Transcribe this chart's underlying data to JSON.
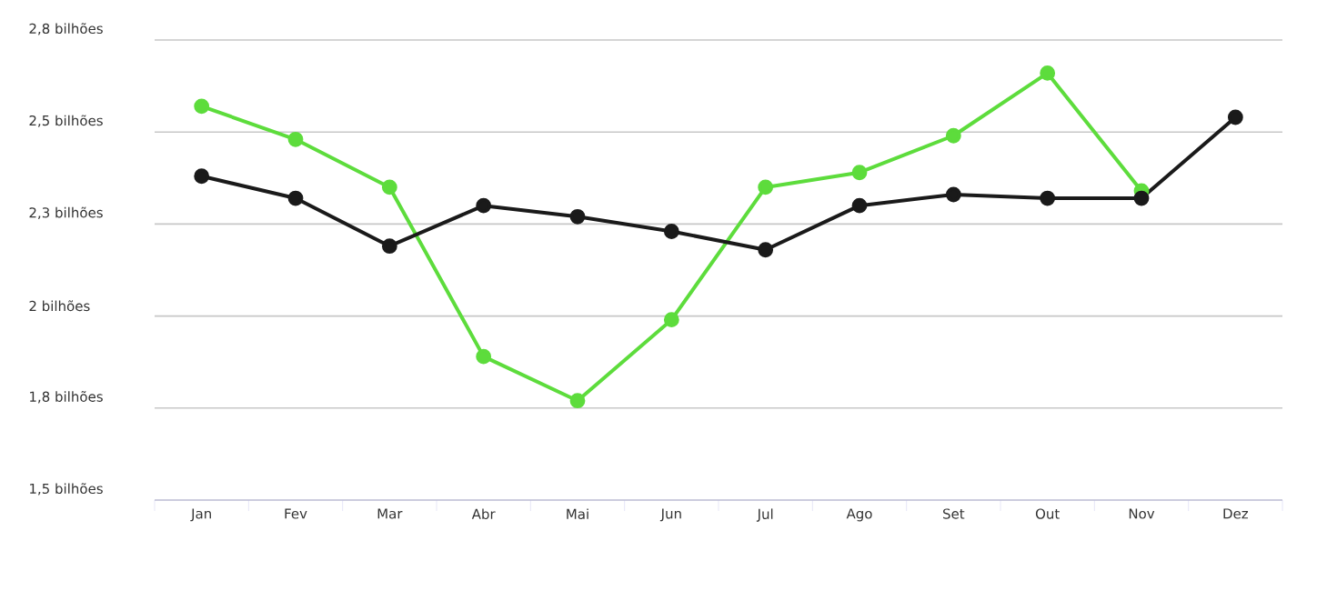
{
  "chart_data": {
    "type": "line",
    "categories": [
      "Jan",
      "Fev",
      "Mar",
      "Abr",
      "Mai",
      "Jun",
      "Jul",
      "Ago",
      "Set",
      "Out",
      "Nov",
      "Dez"
    ],
    "series": [
      {
        "color": "#5ddc3c",
        "values": [
          2.57,
          2.48,
          2.35,
          1.89,
          1.77,
          1.99,
          2.35,
          2.39,
          2.49,
          2.66,
          2.34,
          null
        ]
      },
      {
        "color": "#1a1a1a",
        "values": [
          2.38,
          2.32,
          2.19,
          2.3,
          2.27,
          2.23,
          2.18,
          2.3,
          2.33,
          2.32,
          2.32,
          2.54
        ]
      }
    ],
    "ylim": [
      1.5,
      2.75
    ],
    "yticks": [
      {
        "value": 1.5,
        "label": "1,5 bilhões"
      },
      {
        "value": 1.75,
        "label": "1,8 bilhões"
      },
      {
        "value": 2,
        "label": "2 bilhões"
      },
      {
        "value": 2.25,
        "label": "2,3 bilhões"
      },
      {
        "value": 2.5,
        "label": "2,5 bilhões"
      },
      {
        "value": 2.75,
        "label": "2,8 bilhões"
      }
    ],
    "grid": "y",
    "marker": "circle",
    "line_style": "solid"
  }
}
